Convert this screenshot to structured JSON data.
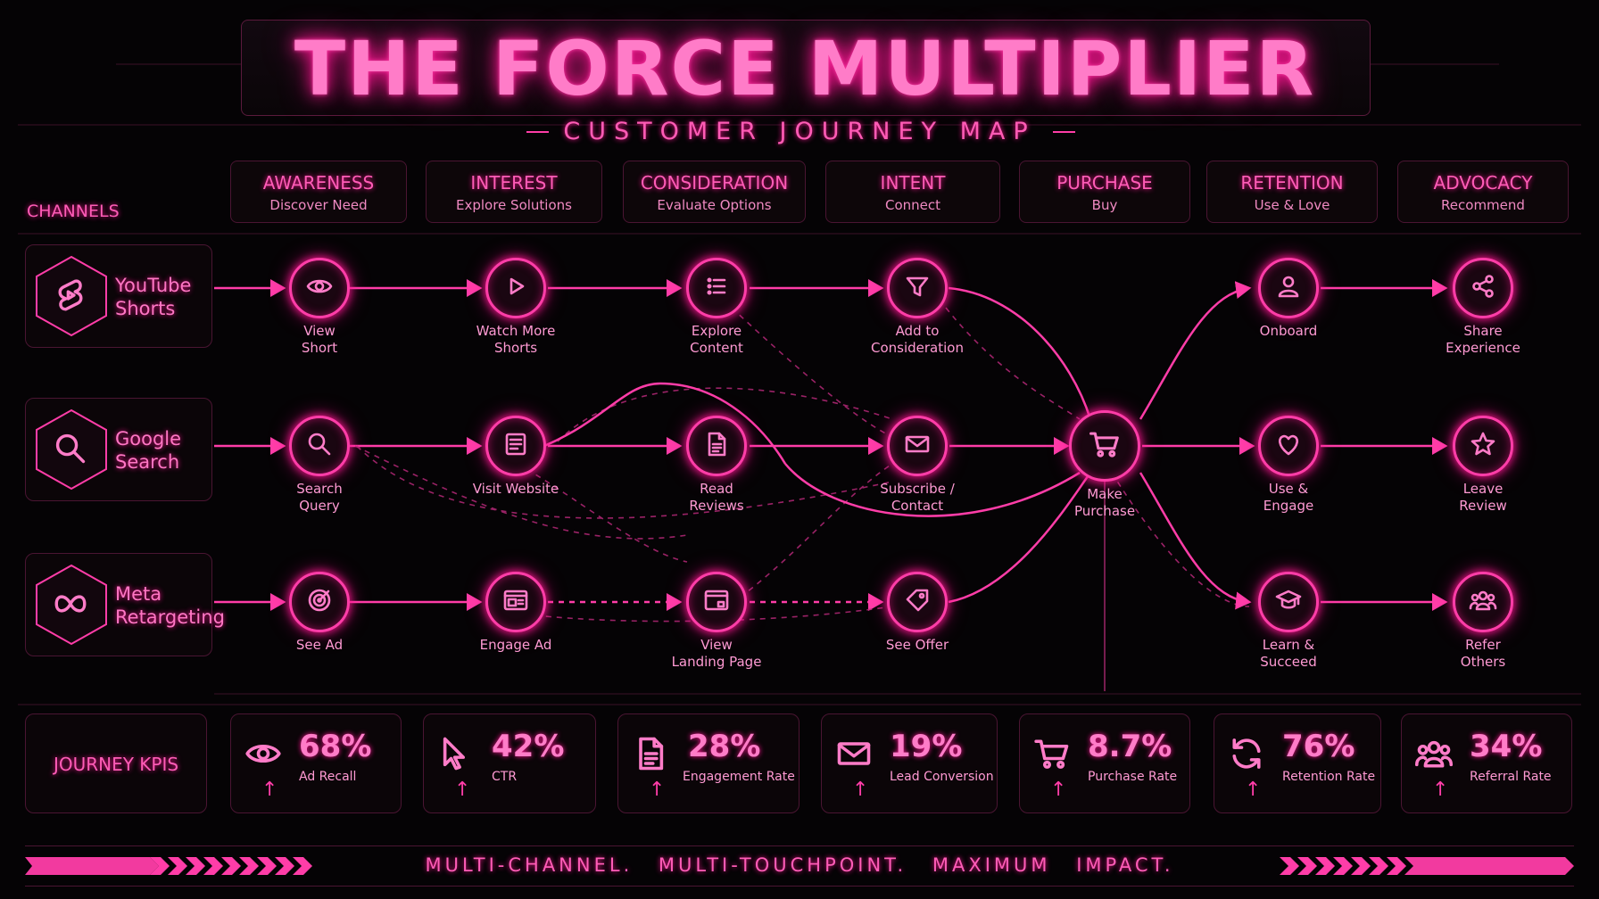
{
  "header": {
    "title": "THE FORCE MULTIPLIER",
    "subtitle": "CUSTOMER JOURNEY MAP"
  },
  "stages": [
    {
      "name": "AWARENESS",
      "sub": "Discover Need"
    },
    {
      "name": "INTEREST",
      "sub": "Explore Solutions"
    },
    {
      "name": "CONSIDERATION",
      "sub": "Evaluate Options"
    },
    {
      "name": "INTENT",
      "sub": "Connect"
    },
    {
      "name": "PURCHASE",
      "sub": "Buy"
    },
    {
      "name": "RETENTION",
      "sub": "Use & Love"
    },
    {
      "name": "ADVOCACY",
      "sub": "Recommend"
    }
  ],
  "channels": {
    "label": "CHANNELS",
    "items": [
      {
        "name": "YouTube\nShorts",
        "icon": "youtube-shorts-icon"
      },
      {
        "name": "Google\nSearch",
        "icon": "search-icon"
      },
      {
        "name": "Meta\nRetargeting",
        "icon": "meta-infinity-icon"
      }
    ]
  },
  "nodes": [
    {
      "label": "View\nShort",
      "icon": "eye-icon"
    },
    {
      "label": "Watch More\nShorts",
      "icon": "play-icon"
    },
    {
      "label": "Explore\nContent",
      "icon": "list-icon"
    },
    {
      "label": "Add to\nConsideration",
      "icon": "funnel-icon"
    },
    {
      "label": "Search\nQuery",
      "icon": "search-icon"
    },
    {
      "label": "Visit Website",
      "icon": "webpage-icon"
    },
    {
      "label": "Read\nReviews",
      "icon": "document-icon"
    },
    {
      "label": "Subscribe /\nContact",
      "icon": "envelope-icon"
    },
    {
      "label": "See Ad",
      "icon": "target-icon"
    },
    {
      "label": "Engage Ad",
      "icon": "ad-window-icon"
    },
    {
      "label": "View\nLanding Page",
      "icon": "browser-icon"
    },
    {
      "label": "See Offer",
      "icon": "tag-icon"
    },
    {
      "label": "Make\nPurchase",
      "icon": "cart-icon"
    },
    {
      "label": "Onboard",
      "icon": "user-icon"
    },
    {
      "label": "Use &\nEngage",
      "icon": "heart-icon"
    },
    {
      "label": "Learn &\nSucceed",
      "icon": "graduation-cap-icon"
    },
    {
      "label": "Share\nExperience",
      "icon": "share-icon"
    },
    {
      "label": "Leave\nReview",
      "icon": "star-icon"
    },
    {
      "label": "Refer\nOthers",
      "icon": "people-icon"
    }
  ],
  "kpis": {
    "label": "JOURNEY KPIS",
    "items": [
      {
        "value": "68%",
        "label": "Ad Recall",
        "icon": "eye-icon"
      },
      {
        "value": "42%",
        "label": "CTR",
        "icon": "cursor-icon"
      },
      {
        "value": "28%",
        "label": "Engagement Rate",
        "icon": "document-icon"
      },
      {
        "value": "19%",
        "label": "Lead Conversion",
        "icon": "envelope-icon"
      },
      {
        "value": "8.7%",
        "label": "Purchase Rate",
        "icon": "cart-icon"
      },
      {
        "value": "76%",
        "label": "Retention Rate",
        "icon": "refresh-icon"
      },
      {
        "value": "34%",
        "label": "Referral Rate",
        "icon": "people-icon"
      }
    ]
  },
  "footer": {
    "tagline": "MULTI-CHANNEL.  MULTI-TOUCHPOINT.  MAXIMUM IMPACT."
  },
  "colors": {
    "accent": "#ff3da8",
    "background": "#050305",
    "text": "#ff9ad3"
  }
}
